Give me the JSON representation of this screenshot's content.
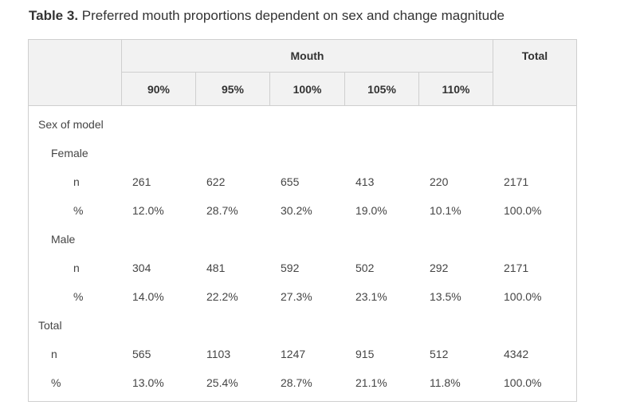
{
  "caption": {
    "label": "Table 3.",
    "text": "Preferred mouth proportions dependent on sex and change magnitude"
  },
  "header": {
    "group_label": "Mouth",
    "total_label": "Total",
    "columns": [
      "90%",
      "95%",
      "100%",
      "105%",
      "110%"
    ]
  },
  "body": {
    "section_label": "Sex of model",
    "female": {
      "label": "Female",
      "n_label": "n",
      "pct_label": "%",
      "n": [
        "261",
        "622",
        "655",
        "413",
        "220",
        "2171"
      ],
      "pct": [
        "12.0%",
        "28.7%",
        "30.2%",
        "19.0%",
        "10.1%",
        "100.0%"
      ]
    },
    "male": {
      "label": "Male",
      "n_label": "n",
      "pct_label": "%",
      "n": [
        "304",
        "481",
        "592",
        "502",
        "292",
        "2171"
      ],
      "pct": [
        "14.0%",
        "22.2%",
        "27.3%",
        "23.1%",
        "13.5%",
        "100.0%"
      ]
    },
    "total": {
      "label": "Total",
      "n_label": "n",
      "pct_label": "%",
      "n": [
        "565",
        "1103",
        "1247",
        "915",
        "512",
        "4342"
      ],
      "pct": [
        "13.0%",
        "25.4%",
        "28.7%",
        "21.1%",
        "11.8%",
        "100.0%"
      ]
    }
  }
}
